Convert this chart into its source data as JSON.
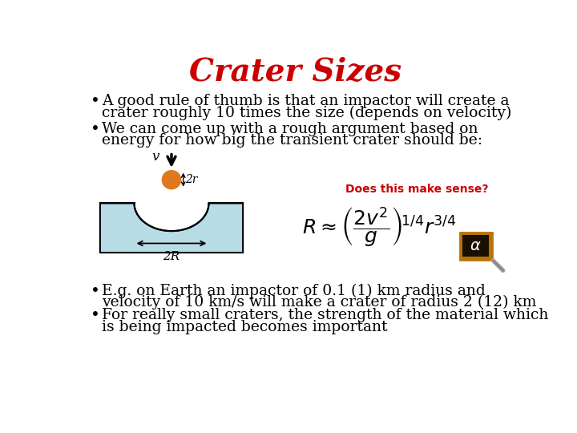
{
  "title": "Crater Sizes",
  "title_color": "#CC0000",
  "title_fontsize": 28,
  "background_color": "#ffffff",
  "bullet1_line1": "A good rule of thumb is that an impactor will create a",
  "bullet1_line2": "crater roughly 10 times the size (depends on velocity)",
  "bullet2_line1": "We can come up with a rough argument based on",
  "bullet2_line2": "energy for how big the transient crater should be:",
  "annotation": "Does this make sense?",
  "annotation_color": "#CC0000",
  "bullet3_line1": "E.g. on Earth an impactor of 0.1 (1) km radius and",
  "bullet3_line2": "velocity of 10 km/s will make a crater of radius 2 (12) km",
  "bullet4_line1": "For really small craters, the strength of the material which",
  "bullet4_line2": "is being impacted becomes important",
  "body_fontsize": 13.5,
  "body_color": "#000000",
  "crater_fill": "#b8dce6",
  "crater_edge": "#000000",
  "impactor_color": "#e07820",
  "arrow_color": "#000000",
  "chalkboard_bg": "#1a1000",
  "chalkboard_border": "#b8720a"
}
